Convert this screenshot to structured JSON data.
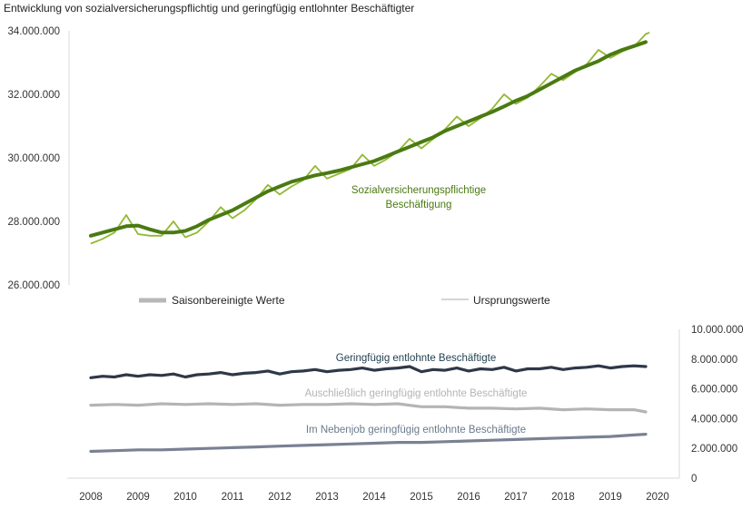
{
  "chart_data": [
    {
      "type": "line",
      "title": "Entwicklung von sozialversicherungspflichtig und geringfügig entlohnter Beschäftigter",
      "ylim": [
        26000000,
        34000000
      ],
      "yticks": [
        "26.000.000",
        "28.000.000",
        "30.000.000",
        "32.000.000",
        "34.000.000"
      ],
      "legend": [
        "Saisonbereinigte Werte",
        "Ursprungswerte"
      ],
      "series": [
        {
          "name": "Sozialversicherungspflichtige Beschäftigung",
          "label_lines": [
            "Sozialversicherungspflichtige",
            "Beschäftigung"
          ],
          "kind": "Saisonbereinigte Werte",
          "color": "#4a7a12",
          "x": [
            2008.0,
            2008.25,
            2008.5,
            2008.75,
            2009.0,
            2009.25,
            2009.5,
            2009.75,
            2010.0,
            2010.25,
            2010.5,
            2010.75,
            2011.0,
            2011.25,
            2011.5,
            2011.75,
            2012.0,
            2012.25,
            2012.5,
            2012.75,
            2013.0,
            2013.25,
            2013.5,
            2013.75,
            2014.0,
            2014.25,
            2014.5,
            2014.75,
            2015.0,
            2015.25,
            2015.5,
            2015.75,
            2016.0,
            2016.25,
            2016.5,
            2016.75,
            2017.0,
            2017.25,
            2017.5,
            2017.75,
            2018.0,
            2018.25,
            2018.5,
            2018.75,
            2019.0,
            2019.25,
            2019.5,
            2019.75
          ],
          "values": [
            27550000,
            27650000,
            27750000,
            27850000,
            27870000,
            27750000,
            27650000,
            27650000,
            27700000,
            27850000,
            28050000,
            28200000,
            28350000,
            28550000,
            28750000,
            28950000,
            29100000,
            29250000,
            29350000,
            29450000,
            29520000,
            29600000,
            29700000,
            29800000,
            29900000,
            30050000,
            30200000,
            30350000,
            30500000,
            30650000,
            30850000,
            31000000,
            31150000,
            31300000,
            31450000,
            31620000,
            31800000,
            31950000,
            32150000,
            32350000,
            32550000,
            32750000,
            32900000,
            33050000,
            33250000,
            33400000,
            33520000,
            33650000
          ]
        },
        {
          "name": "Sozialversicherungspflichtige Beschäftigung",
          "kind": "Ursprungswerte",
          "color": "#93b833",
          "x": [
            2008.0,
            2008.25,
            2008.5,
            2008.75,
            2009.0,
            2009.25,
            2009.5,
            2009.75,
            2010.0,
            2010.25,
            2010.5,
            2010.75,
            2011.0,
            2011.25,
            2011.5,
            2011.75,
            2012.0,
            2012.25,
            2012.5,
            2012.75,
            2013.0,
            2013.25,
            2013.5,
            2013.75,
            2014.0,
            2014.25,
            2014.5,
            2014.75,
            2015.0,
            2015.25,
            2015.5,
            2015.75,
            2016.0,
            2016.25,
            2016.5,
            2016.75,
            2017.0,
            2017.25,
            2017.5,
            2017.75,
            2018.0,
            2018.25,
            2018.5,
            2018.75,
            2019.0,
            2019.25,
            2019.5,
            2019.75,
            2019.83
          ],
          "values": [
            27300000,
            27450000,
            27650000,
            28200000,
            27600000,
            27550000,
            27550000,
            28000000,
            27500000,
            27650000,
            28000000,
            28450000,
            28100000,
            28350000,
            28700000,
            29150000,
            28850000,
            29100000,
            29300000,
            29750000,
            29350000,
            29500000,
            29650000,
            30100000,
            29750000,
            29950000,
            30200000,
            30600000,
            30300000,
            30600000,
            30900000,
            31300000,
            31000000,
            31250000,
            31550000,
            32000000,
            31700000,
            31900000,
            32250000,
            32650000,
            32450000,
            32700000,
            32950000,
            33400000,
            33150000,
            33350000,
            33500000,
            33900000,
            33950000
          ]
        }
      ]
    },
    {
      "type": "line",
      "ylim": [
        0,
        10000000
      ],
      "yticks": [
        "0",
        "2.000.000",
        "4.000.000",
        "6.000.000",
        "8.000.000",
        "10.000.000"
      ],
      "xticks": [
        "2008",
        "2009",
        "2010",
        "2011",
        "2012",
        "2013",
        "2014",
        "2015",
        "2016",
        "2017",
        "2018",
        "2019",
        "2020"
      ],
      "xlim": [
        2008,
        2020
      ],
      "series": [
        {
          "name": "Geringfügig entlohnte Beschäftigte",
          "color": "#2f3848",
          "label_color": "#1f3f4f",
          "x": [
            2008.0,
            2008.25,
            2008.5,
            2008.75,
            2009.0,
            2009.25,
            2009.5,
            2009.75,
            2010.0,
            2010.25,
            2010.5,
            2010.75,
            2011.0,
            2011.25,
            2011.5,
            2011.75,
            2012.0,
            2012.25,
            2012.5,
            2012.75,
            2013.0,
            2013.25,
            2013.5,
            2013.75,
            2014.0,
            2014.25,
            2014.5,
            2014.75,
            2015.0,
            2015.25,
            2015.5,
            2015.75,
            2016.0,
            2016.25,
            2016.5,
            2016.75,
            2017.0,
            2017.25,
            2017.5,
            2017.75,
            2018.0,
            2018.25,
            2018.5,
            2018.75,
            2019.0,
            2019.25,
            2019.5,
            2019.75
          ],
          "values": [
            6750000,
            6850000,
            6800000,
            6950000,
            6850000,
            6950000,
            6900000,
            7000000,
            6800000,
            6950000,
            7000000,
            7100000,
            6950000,
            7050000,
            7100000,
            7200000,
            7000000,
            7150000,
            7200000,
            7300000,
            7150000,
            7250000,
            7300000,
            7400000,
            7250000,
            7350000,
            7400000,
            7500000,
            7150000,
            7300000,
            7250000,
            7400000,
            7200000,
            7350000,
            7300000,
            7450000,
            7200000,
            7350000,
            7350000,
            7450000,
            7300000,
            7400000,
            7450000,
            7550000,
            7400000,
            7500000,
            7550000,
            7500000
          ]
        },
        {
          "name": "Auschließlich geringfügig entlohnte Beschäftigte",
          "color": "#b4b4b4",
          "label_color": "#b4b4b4",
          "x": [
            2008.0,
            2008.5,
            2009.0,
            2009.5,
            2010.0,
            2010.5,
            2011.0,
            2011.5,
            2012.0,
            2012.5,
            2013.0,
            2013.5,
            2014.0,
            2014.5,
            2015.0,
            2015.5,
            2016.0,
            2016.5,
            2017.0,
            2017.5,
            2018.0,
            2018.5,
            2019.0,
            2019.5,
            2019.75
          ],
          "values": [
            4900000,
            4950000,
            4900000,
            5000000,
            4950000,
            5000000,
            4950000,
            5000000,
            4900000,
            4950000,
            4950000,
            5000000,
            4950000,
            5000000,
            4800000,
            4800000,
            4700000,
            4700000,
            4650000,
            4700000,
            4600000,
            4650000,
            4600000,
            4600000,
            4450000
          ]
        },
        {
          "name": "Im Nebenjob geringfügig entlohnte Beschäftigte",
          "color": "#7a8193",
          "label_color": "#6a7a8a",
          "x": [
            2008.0,
            2008.5,
            2009.0,
            2009.5,
            2010.0,
            2010.5,
            2011.0,
            2011.5,
            2012.0,
            2012.5,
            2013.0,
            2013.5,
            2014.0,
            2014.5,
            2015.0,
            2015.5,
            2016.0,
            2016.5,
            2017.0,
            2017.5,
            2018.0,
            2018.5,
            2019.0,
            2019.5,
            2019.75
          ],
          "values": [
            1800000,
            1850000,
            1900000,
            1900000,
            1950000,
            2000000,
            2050000,
            2100000,
            2150000,
            2200000,
            2250000,
            2300000,
            2350000,
            2400000,
            2400000,
            2450000,
            2500000,
            2550000,
            2600000,
            2650000,
            2700000,
            2750000,
            2800000,
            2900000,
            2950000
          ]
        }
      ]
    }
  ]
}
